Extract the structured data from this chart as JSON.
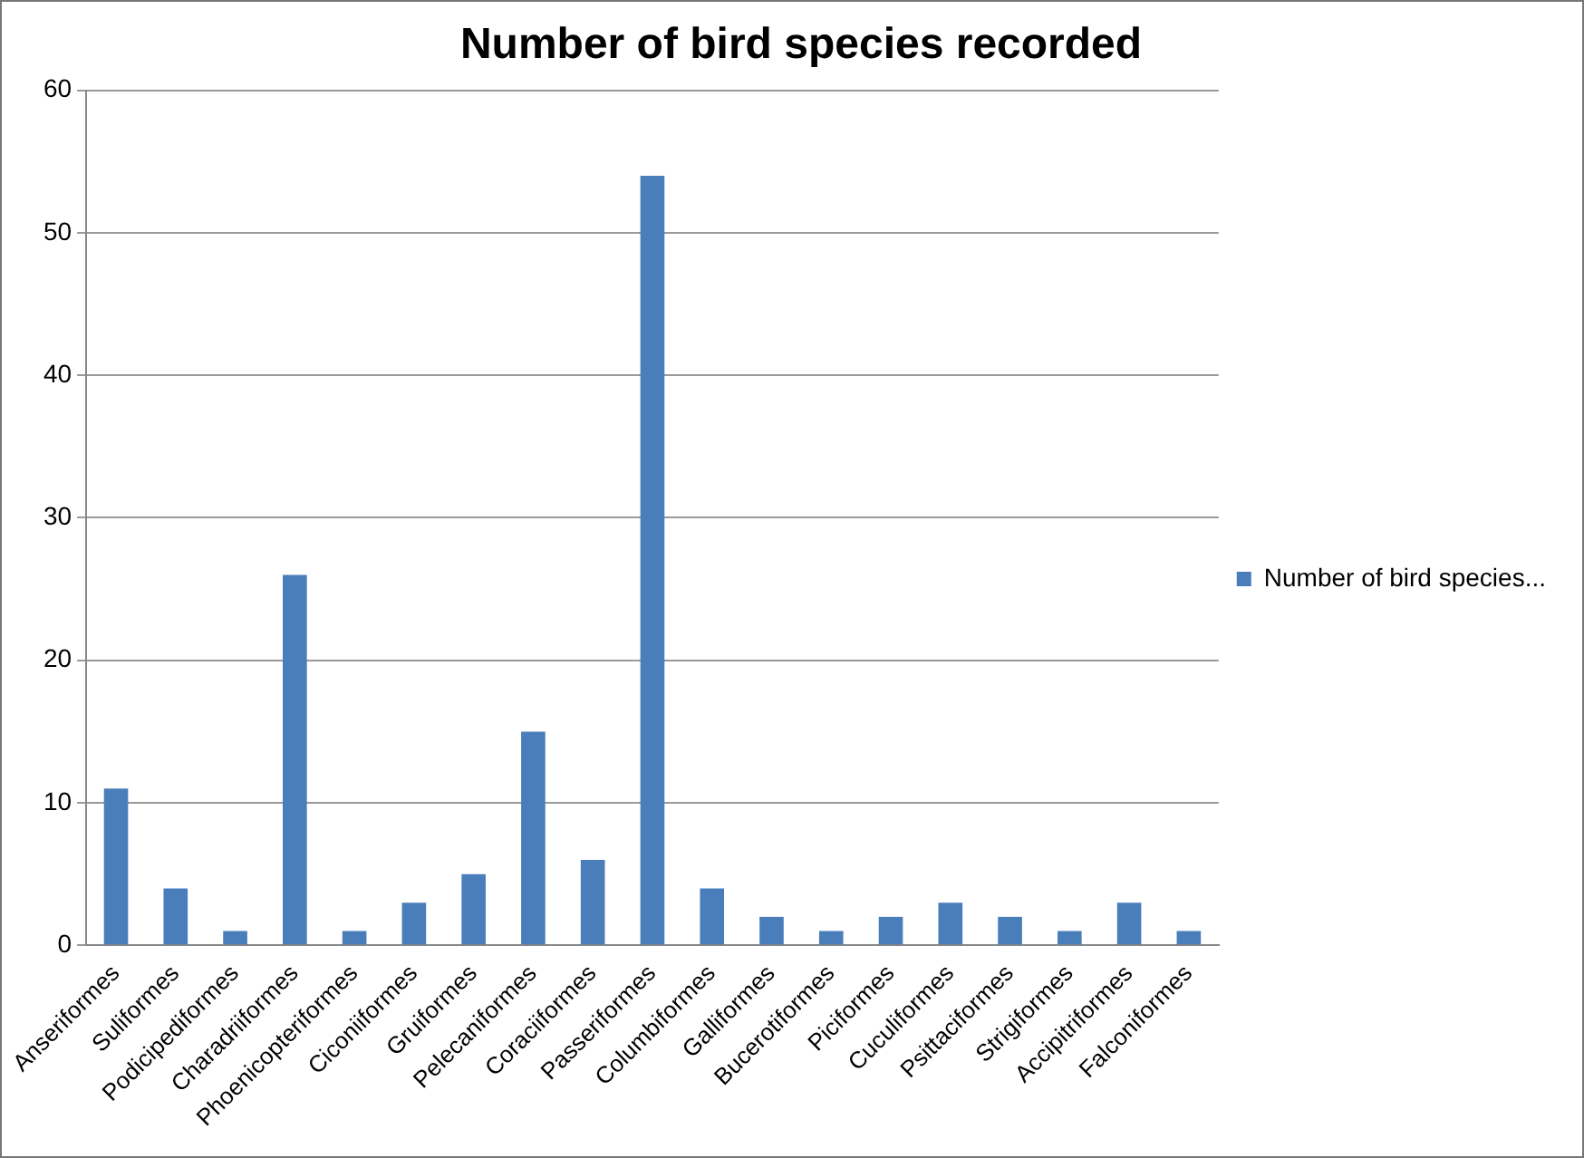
{
  "chart_data": {
    "type": "bar",
    "title": "Number of bird species recorded",
    "categories": [
      "Anseriformes",
      "Suliformes",
      "Podicipediformes",
      "Charadriiformes",
      "Phoenicopteriformes",
      "Ciconiiformes",
      "Gruiformes",
      "Pelecaniformes",
      "Coraciiformes",
      "Passeriformes",
      "Columbiformes",
      "Galliformes",
      "Bucerotiformes",
      "Piciformes",
      "Cuculiformes",
      "Psittaciformes",
      "Strigiformes",
      "Accipitriformes",
      "Falconiformes"
    ],
    "series": [
      {
        "name": "Number of bird species...",
        "color": "#4a7ebb",
        "values": [
          11,
          4,
          1,
          26,
          1,
          3,
          5,
          15,
          6,
          54,
          4,
          2,
          1,
          2,
          3,
          2,
          1,
          3,
          1
        ]
      }
    ],
    "ylim": [
      0,
      60
    ],
    "yticks": [
      0,
      10,
      20,
      30,
      40,
      50,
      60
    ],
    "grid": "y",
    "legend": "right"
  }
}
